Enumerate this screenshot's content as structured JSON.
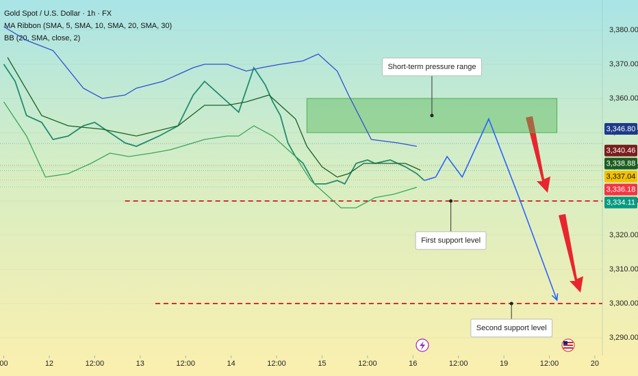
{
  "chart_data": {
    "type": "line",
    "title": "Gold Spot / U.S. Dollar · 1h · FX",
    "indicators": [
      "MA Ribbon (SMA, 5, SMA, 10, SMA, 20, SMA, 30)",
      "BB (20, SMA, close, 2)"
    ],
    "xlim": [
      -1,
      158
    ],
    "xticks": [
      {
        "value": 0,
        "label": "00"
      },
      {
        "value": 12,
        "label": "12"
      },
      {
        "value": 24,
        "label": "12:00"
      },
      {
        "value": 36,
        "label": "13"
      },
      {
        "value": 48,
        "label": "12:00"
      },
      {
        "value": 60,
        "label": "14"
      },
      {
        "value": 72,
        "label": "12:00"
      },
      {
        "value": 84,
        "label": "15"
      },
      {
        "value": 96,
        "label": "12:00"
      },
      {
        "value": 108,
        "label": "16"
      },
      {
        "value": 120,
        "label": "12:00"
      },
      {
        "value": 132,
        "label": "19"
      },
      {
        "value": 144,
        "label": "12:00"
      },
      {
        "value": 156,
        "label": "20"
      }
    ],
    "ylim": [
      3285,
      3388
    ],
    "yticks": [
      {
        "value": 3290,
        "label": "3,290.00"
      },
      {
        "value": 3300,
        "label": "3,300.00"
      },
      {
        "value": 3310,
        "label": "3,310.00"
      },
      {
        "value": 3320,
        "label": "3,320.00"
      },
      {
        "value": 3330,
        "label": "3,330.00"
      },
      {
        "value": 3340,
        "label": "3,340.00"
      },
      {
        "value": 3350,
        "label": "3,350.00"
      },
      {
        "value": 3360,
        "label": "3,360.00"
      },
      {
        "value": 3370,
        "label": "3,370.00"
      },
      {
        "value": 3380,
        "label": "3,380.00"
      }
    ],
    "series": [
      {
        "color": "#1e8c6e",
        "x": [
          0,
          3,
          6,
          10,
          13,
          17,
          21,
          24,
          28,
          32,
          35,
          41,
          46,
          50,
          53,
          59,
          62,
          66,
          69,
          71,
          73,
          75,
          77,
          79,
          82,
          85,
          88,
          90,
          93,
          96,
          98,
          102,
          106,
          109,
          111
        ],
        "values": [
          3370,
          3365,
          3355,
          3353,
          3348,
          3349,
          3352,
          3353,
          3350,
          3347,
          3346,
          3349,
          3352,
          3361,
          3365,
          3359,
          3356,
          3369,
          3364,
          3359,
          3355,
          3347,
          3343,
          3341,
          3335,
          3335,
          3336,
          3335,
          3341,
          3342,
          3341,
          3342,
          3340,
          3338,
          3336
        ]
      },
      {
        "color": "#1b5e20",
        "x": [
          1,
          10,
          17,
          26,
          35,
          46,
          53,
          59,
          64,
          70,
          73,
          77,
          80,
          84,
          88,
          91,
          95,
          100,
          106,
          110
        ],
        "values": [
          3372,
          3355,
          3352,
          3351,
          3349,
          3352,
          3358,
          3358,
          3359,
          3361,
          3358,
          3354,
          3346,
          3340,
          3337,
          3338,
          3341,
          3341,
          3341,
          3339
        ]
      },
      {
        "color": "#2f4fd0",
        "x": [
          0,
          6,
          13,
          21,
          26,
          32,
          35,
          42,
          50,
          53,
          59,
          64,
          68,
          73,
          79,
          83,
          88,
          91,
          97,
          104,
          109
        ],
        "values": [
          3381,
          3377,
          3374,
          3363,
          3360,
          3361,
          3363,
          3365,
          3369,
          3370,
          3370,
          3368,
          3369,
          3370,
          3371,
          3373,
          3368,
          3361,
          3348,
          3347,
          3346
        ]
      },
      {
        "color": "#3aa55a",
        "x": [
          0,
          6,
          11,
          17,
          23,
          28,
          33,
          39,
          44,
          50,
          53,
          59,
          62,
          66,
          71,
          77,
          81,
          85,
          89,
          93,
          98,
          103,
          109
        ],
        "values": [
          3359,
          3349,
          3337,
          3338,
          3341,
          3344,
          3343,
          3344,
          3345,
          3347,
          3348,
          3349,
          3349,
          3352,
          3349,
          3343,
          3336,
          3332,
          3328,
          3328,
          3331,
          3332,
          3334
        ]
      }
    ],
    "pressure_range": {
      "label": "Short-term pressure range",
      "x_range": [
        80,
        146
      ],
      "y_range": [
        3350,
        3360
      ]
    },
    "support_lines": [
      {
        "value": 3330,
        "from": 32,
        "label": "First support level",
        "label_at": 118
      },
      {
        "value": 3300,
        "from": 40,
        "label": "Second support level",
        "label_at": 134
      }
    ],
    "projection": {
      "color": "#2962ff",
      "x": [
        111,
        114,
        117,
        121,
        128,
        136,
        146
      ],
      "values": [
        3336,
        3337,
        3343,
        3337,
        3354,
        3331,
        3301
      ]
    },
    "last_values": [
      {
        "value": 3346.8,
        "label": "3,346.80",
        "color": "#1e3a8a"
      },
      {
        "value": 3340.46,
        "label": "3,340.46",
        "color": "#7b1d1d"
      },
      {
        "value": 3338.88,
        "label": "3,338.88",
        "color": "#1b5e20"
      },
      {
        "value": 3337.04,
        "label": "3,337.04",
        "color": "#f2c200"
      },
      {
        "value": 3336.18,
        "label": "3,336.18",
        "color": "#f23645"
      },
      {
        "value": 3334.11,
        "label": "3,334.11",
        "color": "#089981"
      }
    ]
  }
}
